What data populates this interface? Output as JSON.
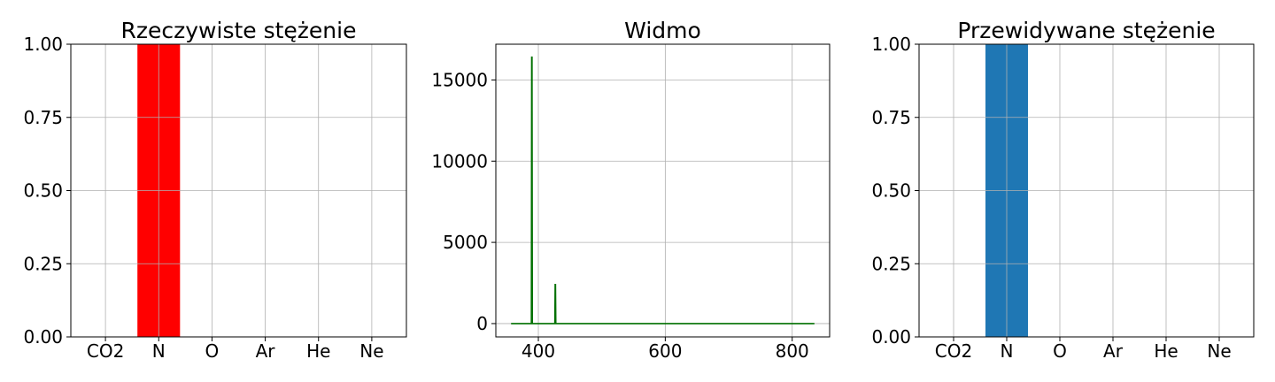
{
  "chart_data": [
    {
      "type": "bar",
      "title": "Rzeczywiste stężenie",
      "categories": [
        "CO2",
        "N",
        "O",
        "Ar",
        "He",
        "Ne"
      ],
      "values": [
        0,
        1,
        0,
        0,
        0,
        0
      ],
      "ylim": [
        0,
        1
      ],
      "yticks": [
        "0.00",
        "0.25",
        "0.50",
        "0.75",
        "1.00"
      ],
      "bar_color": "#ff0000",
      "grid": true
    },
    {
      "type": "line",
      "title": "Widmo",
      "x": [
        357,
        389,
        389.5,
        390,
        390.5,
        391,
        426,
        426.5,
        427,
        427.5,
        428,
        835
      ],
      "y": [
        0,
        0,
        16400,
        16400,
        0,
        0,
        0,
        2400,
        2400,
        0,
        0,
        0
      ],
      "xlim": [
        333,
        859
      ],
      "ylim": [
        -820,
        17200
      ],
      "xticks": [
        400,
        600,
        800
      ],
      "yticks": [
        0,
        5000,
        10000,
        15000
      ],
      "line_color": "#007000",
      "grid": true
    },
    {
      "type": "bar",
      "title": "Przewidywane stężenie",
      "categories": [
        "CO2",
        "N",
        "O",
        "Ar",
        "He",
        "Ne"
      ],
      "values": [
        0,
        1,
        0,
        0,
        0,
        0
      ],
      "ylim": [
        0,
        1
      ],
      "yticks": [
        "0.00",
        "0.25",
        "0.50",
        "0.75",
        "1.00"
      ],
      "bar_color": "#1f77b4",
      "grid": true
    }
  ]
}
